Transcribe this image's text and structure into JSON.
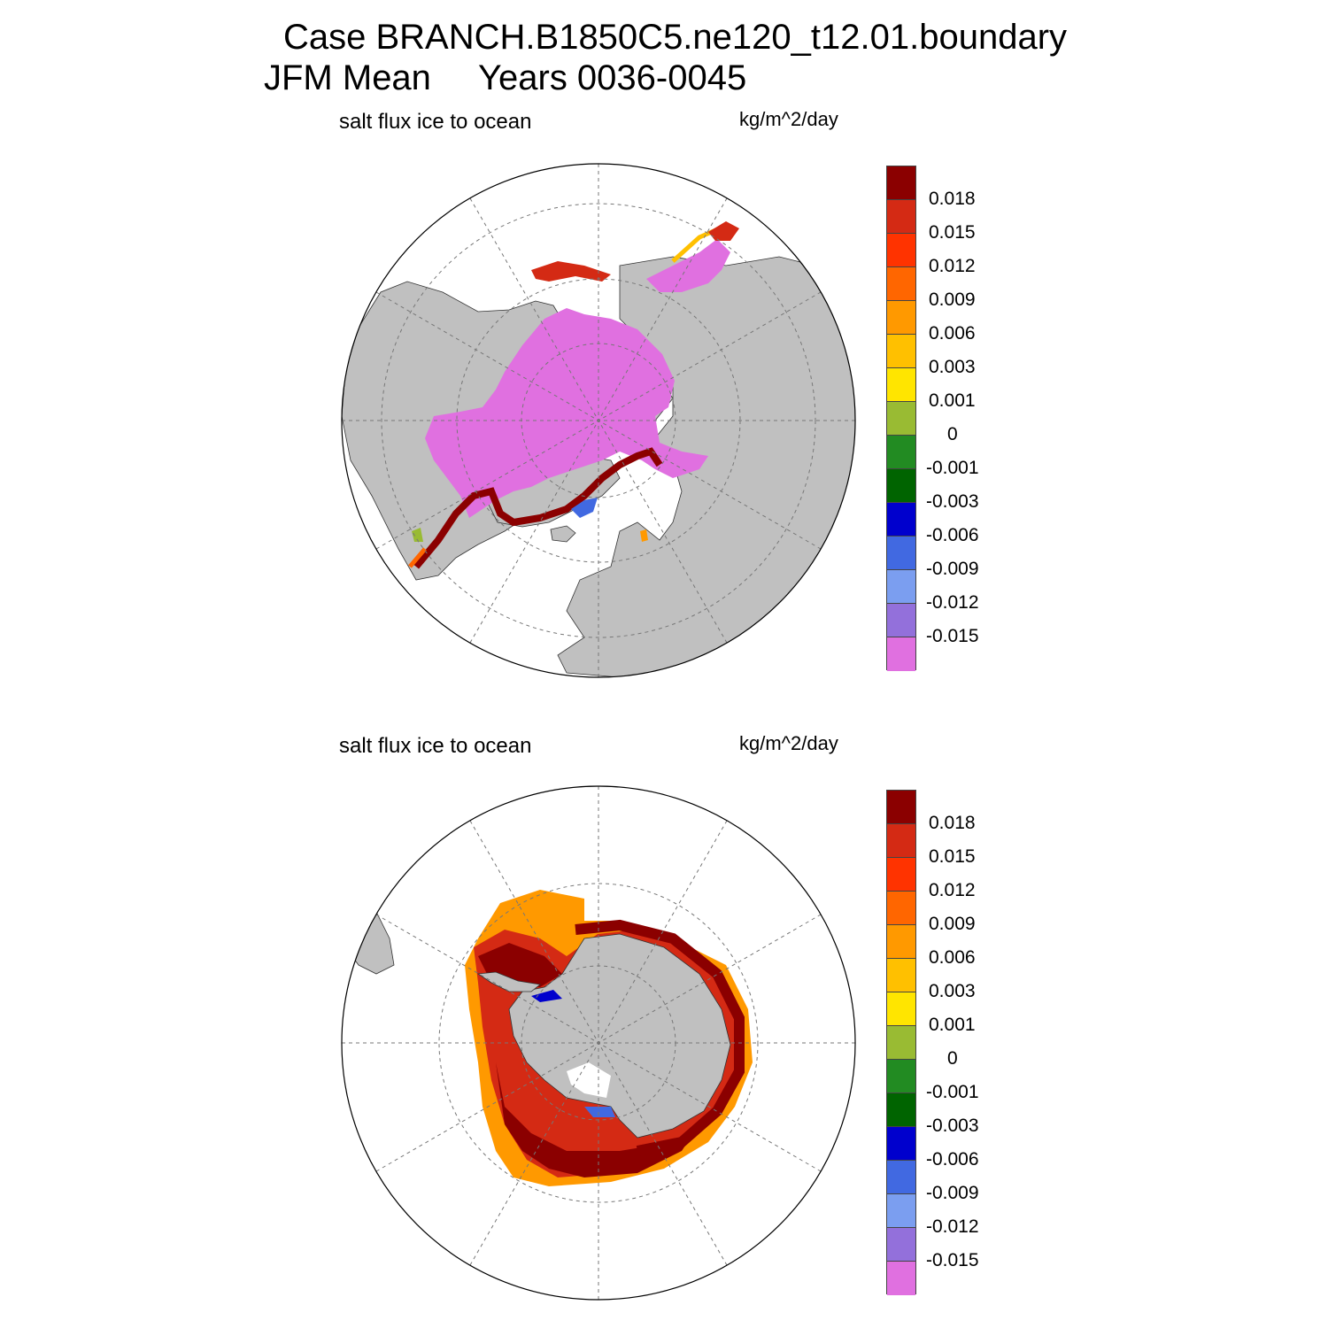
{
  "header": {
    "case_line": "Case BRANCH.B1850C5.ne120_t12.01.boundary",
    "season": "JFM Mean",
    "years": "Years 0036-0045"
  },
  "colors": {
    "levels": [
      "#8b0000",
      "#d42a14",
      "#ff3300",
      "#ff6600",
      "#ff9900",
      "#ffc000",
      "#ffe500",
      "#99bb33",
      "#228b22",
      "#006400",
      "#0000cd",
      "#4169e1",
      "#7b9ef0",
      "#9370db",
      "#e070e0"
    ],
    "land": "#c0c0c0",
    "ocean": "#ffffff",
    "grid": "#777777"
  },
  "colorbar_ticks": [
    "0.018",
    "0.015",
    "0.012",
    "0.009",
    "0.006",
    "0.003",
    "0.001",
    "0",
    "-0.001",
    "-0.003",
    "-0.006",
    "-0.009",
    "-0.012",
    "-0.015"
  ],
  "panels": [
    {
      "id": "north",
      "name": "salt flux ice to ocean",
      "units": "kg/m^2/day",
      "hemisphere": "Arctic (NH)"
    },
    {
      "id": "south",
      "name": "salt flux ice to ocean",
      "units": "kg/m^2/day",
      "hemisphere": "Antarctic (SH)"
    }
  ]
}
